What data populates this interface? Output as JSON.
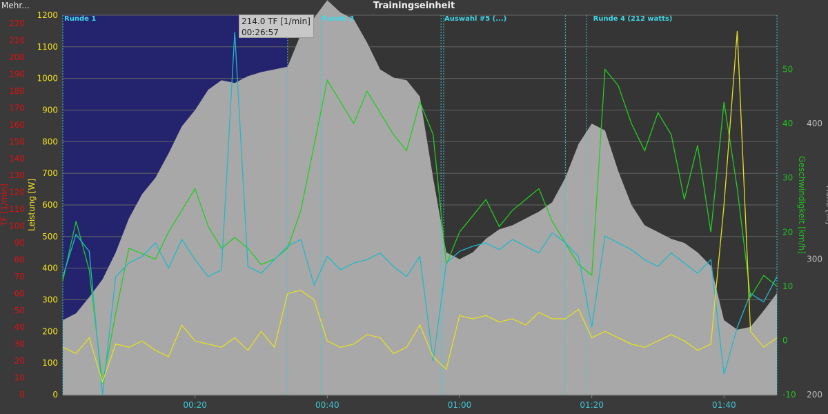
{
  "app": {
    "menu_label": "Mehr..."
  },
  "chart_data": {
    "type": "line",
    "title": "Trainingseinheit",
    "x_axis": {
      "unit": "time",
      "range_min": [
        0,
        108
      ],
      "ticks": [
        {
          "min": 20,
          "label": "00:20"
        },
        {
          "min": 40,
          "label": "00:40"
        },
        {
          "min": 60,
          "label": "01:00"
        },
        {
          "min": 80,
          "label": "01:20"
        },
        {
          "min": 100,
          "label": "01:40"
        }
      ]
    },
    "axes": [
      {
        "id": "tf",
        "label": "TF [1/min]",
        "color": "#e01010",
        "side": "left",
        "range": [
          0,
          225
        ],
        "ticks": [
          0,
          10,
          20,
          30,
          40,
          50,
          60,
          70,
          80,
          90,
          100,
          110,
          120,
          130,
          140,
          150,
          160,
          170,
          180,
          190,
          200,
          210,
          220
        ]
      },
      {
        "id": "power",
        "label": "Leistung [W]",
        "color": "#f0e020",
        "side": "left",
        "range": [
          0,
          1200
        ],
        "ticks": [
          0,
          100,
          200,
          300,
          400,
          500,
          600,
          700,
          800,
          900,
          1000,
          1100,
          1200
        ]
      },
      {
        "id": "speed",
        "label": "Geschwindigkeit [km/h]",
        "color": "#20c020",
        "side": "right",
        "range": [
          -10,
          60
        ],
        "ticks": [
          -10,
          0,
          10,
          20,
          30,
          40,
          50
        ]
      },
      {
        "id": "altitude",
        "label": "Höhe [m]",
        "color": "#bbbbbb",
        "side": "right",
        "range": [
          200,
          480
        ],
        "ticks": [
          200,
          300,
          400
        ]
      }
    ],
    "grid": true,
    "highlight_region": {
      "x_start_min": 0,
      "x_end_min": 34,
      "color": "#24246e"
    },
    "laps": [
      {
        "label": "Runde 1",
        "start_min": 0
      },
      {
        "label": "Runde 3",
        "start_min": 39
      },
      {
        "label": "Auswahl #5 (...)",
        "start_min": 57.5
      },
      {
        "label": "Runde 4 (212 watts)",
        "start_min": 80
      }
    ],
    "lap_markers_min": [
      0,
      34,
      39,
      57.2,
      57.6,
      76,
      79.2,
      108
    ],
    "cursor": {
      "value_text": "214.0 TF [1/min]",
      "time_text": "00:26:57"
    },
    "series": [
      {
        "name": "Höhe [m]",
        "axis": "altitude",
        "style": "area",
        "color": "#a8a8a8",
        "x": [
          0,
          2,
          4,
          6,
          8,
          10,
          12,
          14,
          16,
          18,
          20,
          22,
          24,
          26,
          28,
          30,
          32,
          34,
          36,
          38,
          40,
          42,
          44,
          46,
          48,
          50,
          52,
          54,
          56,
          58,
          60,
          62,
          64,
          66,
          68,
          70,
          72,
          74,
          76,
          78,
          80,
          82,
          84,
          86,
          88,
          90,
          92,
          94,
          96,
          98,
          100,
          102,
          104,
          106,
          108
        ],
        "values": [
          255,
          260,
          272,
          285,
          305,
          330,
          348,
          360,
          378,
          398,
          410,
          425,
          432,
          430,
          435,
          438,
          440,
          442,
          466,
          478,
          491,
          482,
          477,
          460,
          440,
          434,
          432,
          420,
          360,
          305,
          300,
          305,
          315,
          322,
          325,
          330,
          335,
          342,
          360,
          385,
          400,
          395,
          365,
          340,
          325,
          320,
          315,
          312,
          305,
          295,
          255,
          248,
          250,
          262,
          275
        ]
      },
      {
        "name": "Geschwindigkeit [km/h]",
        "axis": "speed",
        "color": "#22cc22",
        "x": [
          0,
          2,
          4,
          6,
          8,
          10,
          12,
          14,
          16,
          18,
          20,
          22,
          24,
          26,
          28,
          30,
          32,
          34,
          36,
          38,
          40,
          42,
          44,
          46,
          48,
          50,
          52,
          54,
          56,
          58,
          60,
          62,
          64,
          66,
          68,
          70,
          72,
          74,
          76,
          78,
          80,
          82,
          84,
          86,
          88,
          90,
          92,
          94,
          96,
          98,
          100,
          102,
          104,
          106,
          108
        ],
        "values": [
          11,
          22,
          13,
          -8,
          5,
          17,
          16,
          15,
          20,
          24,
          28,
          21,
          17,
          19,
          17,
          14,
          15,
          17,
          24,
          36,
          48,
          44,
          40,
          46,
          42,
          38,
          35,
          44,
          38,
          14,
          20,
          23,
          26,
          21,
          24,
          26,
          28,
          22,
          18,
          14,
          12,
          50,
          47,
          40,
          35,
          42,
          38,
          26,
          36,
          20,
          44,
          28,
          8,
          12,
          10
        ]
      },
      {
        "name": "TF [1/min]",
        "axis": "tf",
        "color": "#20b8c8",
        "x": [
          0,
          2,
          4,
          6,
          8,
          10,
          12,
          14,
          16,
          18,
          20,
          22,
          24,
          26,
          28,
          30,
          32,
          34,
          36,
          38,
          40,
          42,
          44,
          46,
          48,
          50,
          52,
          54,
          56,
          58,
          60,
          62,
          64,
          66,
          68,
          70,
          72,
          74,
          76,
          78,
          80,
          82,
          84,
          86,
          88,
          90,
          92,
          94,
          96,
          98,
          100,
          102,
          104,
          106,
          108
        ],
        "values": [
          70,
          95,
          85,
          0,
          70,
          78,
          82,
          90,
          75,
          92,
          80,
          70,
          74,
          215,
          76,
          72,
          80,
          88,
          92,
          65,
          82,
          74,
          78,
          80,
          84,
          76,
          70,
          82,
          20,
          78,
          85,
          88,
          90,
          86,
          92,
          88,
          84,
          96,
          90,
          82,
          40,
          94,
          90,
          86,
          80,
          76,
          84,
          78,
          72,
          80,
          12,
          40,
          60,
          55,
          70
        ]
      },
      {
        "name": "Leistung [W]",
        "axis": "power",
        "color": "#e6e020",
        "x": [
          0,
          2,
          4,
          6,
          8,
          10,
          12,
          14,
          16,
          18,
          20,
          22,
          24,
          26,
          28,
          30,
          32,
          34,
          36,
          38,
          40,
          42,
          44,
          46,
          48,
          50,
          52,
          54,
          56,
          58,
          60,
          62,
          64,
          66,
          68,
          70,
          72,
          74,
          76,
          78,
          80,
          82,
          84,
          86,
          88,
          90,
          92,
          94,
          96,
          98,
          100,
          102,
          104,
          106,
          108
        ],
        "values": [
          150,
          130,
          180,
          40,
          160,
          150,
          170,
          140,
          120,
          220,
          170,
          160,
          150,
          180,
          140,
          200,
          150,
          320,
          330,
          300,
          170,
          150,
          160,
          190,
          180,
          130,
          150,
          220,
          120,
          80,
          250,
          240,
          250,
          230,
          240,
          220,
          260,
          240,
          240,
          270,
          180,
          200,
          180,
          160,
          150,
          170,
          190,
          170,
          140,
          160,
          600,
          1150,
          200,
          150,
          180
        ]
      }
    ]
  }
}
